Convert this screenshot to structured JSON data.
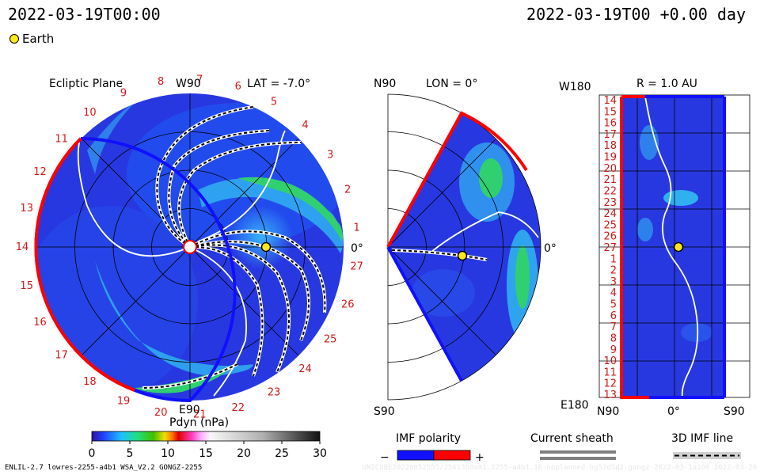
{
  "header": {
    "datetime_left": "2022-03-19T00:00",
    "datetime_right": "2022-03-19T00 +0.00 day",
    "earth_label": "Earth"
  },
  "panels": {
    "ecliptic": {
      "title": "Ecliptic Plane",
      "lat_label": "LAT = -7.0°",
      "top_label": "W90",
      "bottom_label": "E90",
      "right_label": "0°",
      "carrington_ticks": [
        "1",
        "2",
        "3",
        "4",
        "5",
        "6",
        "7",
        "8",
        "9",
        "10",
        "11",
        "12",
        "13",
        "14",
        "15",
        "16",
        "17",
        "18",
        "19",
        "20",
        "21",
        "22",
        "23",
        "24",
        "25",
        "26",
        "27"
      ]
    },
    "meridional": {
      "top_label": "N90",
      "lon_label": "LON = 0°",
      "bottom_label": "S90",
      "right_label": "0°"
    },
    "radial": {
      "top_left_label": "W180",
      "r_label": "R = 1.0 AU",
      "bottom_left_label": "E180",
      "x_labels": [
        "N90",
        "0°",
        "S90"
      ],
      "row_labels": [
        "14",
        "15",
        "16",
        "17",
        "18",
        "19",
        "20",
        "21",
        "22",
        "23",
        "24",
        "25",
        "26",
        "27",
        "1",
        "2",
        "3",
        "4",
        "5",
        "6",
        "7",
        "8",
        "9",
        "10",
        "11",
        "12",
        "13"
      ]
    }
  },
  "chart_data": {
    "type": "heatmap",
    "quantity": "Pdyn (nPa)",
    "colorbar": {
      "label": "Pdyn (nPa)",
      "range": [
        0,
        30
      ],
      "ticks": [
        0,
        5,
        10,
        15,
        20,
        25,
        30
      ]
    },
    "legends": {
      "imf_polarity": {
        "title": "IMF polarity",
        "minus": "−",
        "plus": "+",
        "colors": [
          "#1010ff",
          "#ff0000"
        ]
      },
      "current_sheath": {
        "title": "Current sheath",
        "color": "#808080"
      },
      "imf_line": {
        "title": "3D IMF line"
      }
    },
    "earth_position": {
      "r_au": 1.0,
      "lat_deg": -7.0,
      "lon_deg": 0
    },
    "colors": {
      "background_field": "#2030e0",
      "high_field": "#20d040",
      "boundary_red": "#ff0000",
      "boundary_blue": "#1010ff",
      "earth": "#ffe81a"
    }
  },
  "footer": {
    "left_text": "ENLIL-2.7 lowres-2255-a4b1 WSA_V2.2 GONGZ-2255",
    "right_text": "UNICUBE20220052555/2561380x01.2255-a4b1.16-noplanned-bg53d5d2.gongz-2022-03-1a100   2022-03-20"
  }
}
